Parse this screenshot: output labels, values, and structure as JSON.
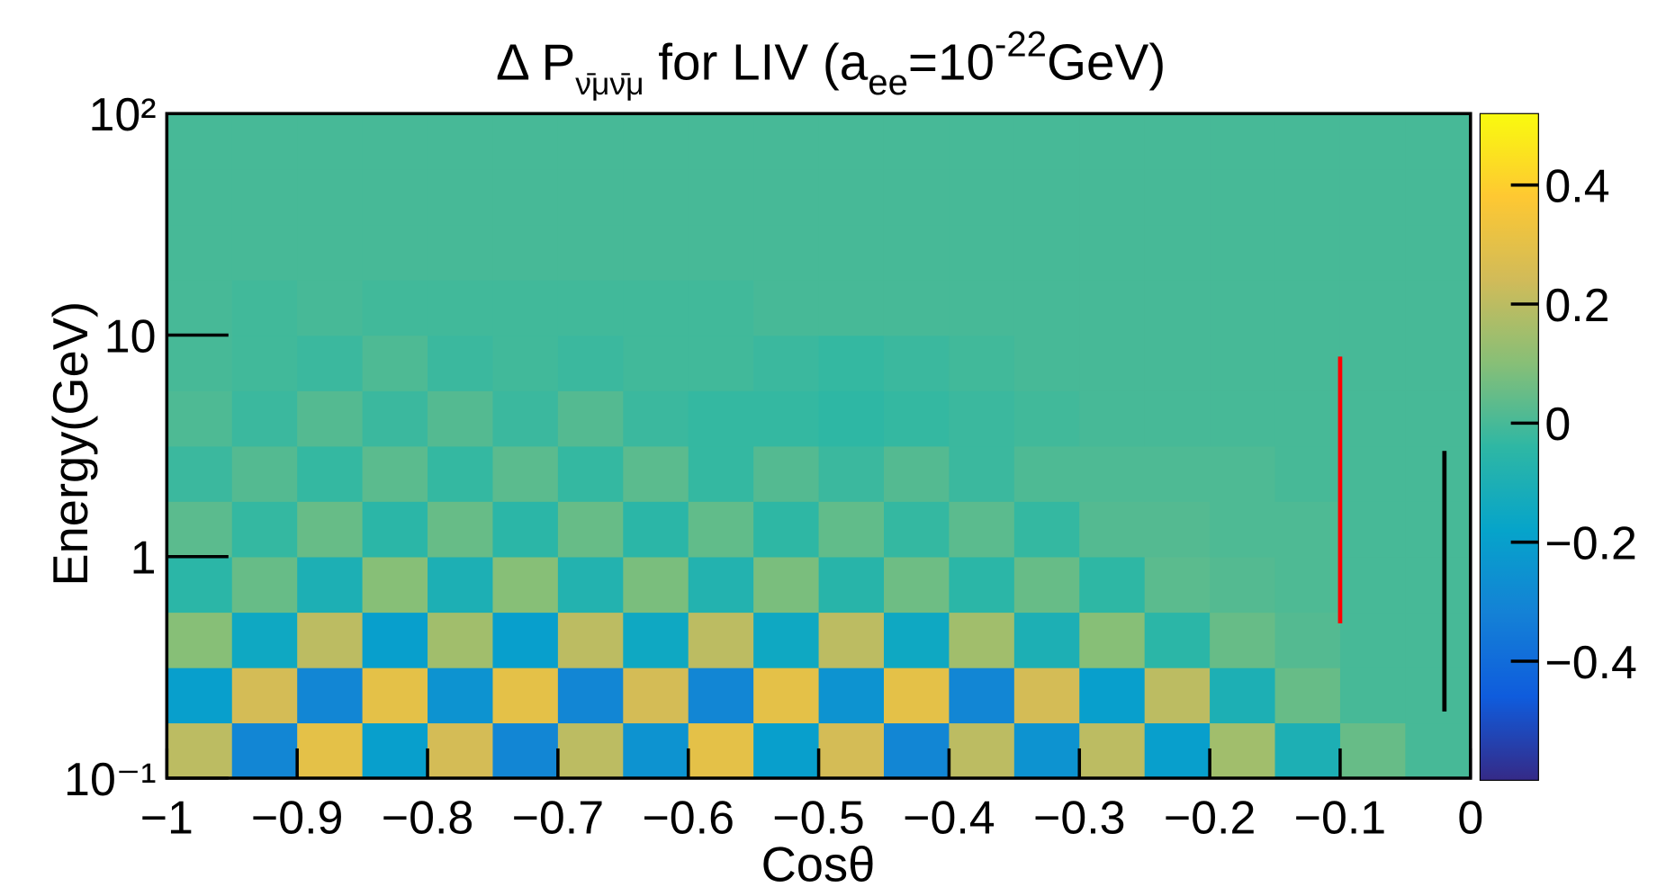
{
  "chart_data": {
    "type": "heatmap",
    "title": [
      "Δ P",
      "ν̄μν̄μ",
      " for LIV (a",
      "ee",
      "=10",
      "-22",
      "GeV)"
    ],
    "x_label": "Cosθ",
    "y_label": "Energy(GeV)",
    "xlim": [
      -1,
      0
    ],
    "xticks": [
      {
        "value": -1,
        "label": "−1"
      },
      {
        "value": -0.9,
        "label": "−0.9"
      },
      {
        "value": -0.8,
        "label": "−0.8"
      },
      {
        "value": -0.7,
        "label": "−0.7"
      },
      {
        "value": -0.6,
        "label": "−0.6"
      },
      {
        "value": -0.5,
        "label": "−0.5"
      },
      {
        "value": -0.4,
        "label": "−0.4"
      },
      {
        "value": -0.3,
        "label": "−0.3"
      },
      {
        "value": -0.2,
        "label": "−0.2"
      },
      {
        "value": -0.1,
        "label": "−0.1"
      },
      0
    ],
    "ylim": [
      0.1,
      100
    ],
    "y_log": true,
    "yticks": [
      {
        "value": 0.1,
        "label": "10⁻¹"
      },
      1,
      10,
      {
        "value": 100,
        "label": "10²"
      }
    ],
    "zlim": [
      -0.6,
      0.52
    ],
    "zticks": [
      {
        "value": -0.4,
        "label": "−0.4"
      },
      {
        "value": -0.2,
        "label": "−0.2"
      },
      0,
      0.2,
      0.4
    ],
    "colorscale": [
      "#352a87",
      "#0f5cdd",
      "#1481d6",
      "#06a4ca",
      "#2eb7a4",
      "#87bf77",
      "#d1bb59",
      "#fec832",
      "#f9fb0e"
    ],
    "x_edges": [
      -1,
      -0.95,
      -0.9,
      -0.85,
      -0.8,
      -0.75,
      -0.7,
      -0.65,
      -0.6,
      -0.55,
      -0.5,
      -0.45,
      -0.4,
      -0.35,
      -0.3,
      -0.25,
      -0.2,
      -0.15,
      -0.1,
      -0.05,
      0
    ],
    "y_edges": [
      0.1,
      0.178,
      0.316,
      0.562,
      1,
      1.78,
      3.16,
      5.62,
      10,
      17.8,
      31.6,
      56.2,
      100
    ],
    "z": [
      [
        0.2,
        -0.3,
        0.3,
        -0.2,
        0.25,
        -0.3,
        0.2,
        -0.25,
        0.3,
        -0.2,
        0.25,
        -0.3,
        0.2,
        -0.25,
        0.2,
        -0.2,
        0.15,
        -0.1,
        0.05,
        0
      ],
      [
        -0.2,
        0.25,
        -0.3,
        0.3,
        -0.25,
        0.3,
        -0.3,
        0.25,
        -0.3,
        0.3,
        -0.25,
        0.3,
        -0.3,
        0.25,
        -0.2,
        0.2,
        -0.1,
        0.05,
        0,
        0
      ],
      [
        0.1,
        -0.15,
        0.2,
        -0.2,
        0.15,
        -0.2,
        0.2,
        -0.15,
        0.2,
        -0.15,
        0.2,
        -0.15,
        0.15,
        -0.1,
        0.1,
        -0.05,
        0.05,
        0.02,
        0,
        0
      ],
      [
        -0.05,
        0.05,
        -0.1,
        0.1,
        -0.1,
        0.1,
        -0.08,
        0.08,
        -0.08,
        0.08,
        -0.06,
        0.06,
        -0.05,
        0.05,
        -0.04,
        0.03,
        0.02,
        0.01,
        0,
        0
      ],
      [
        0.03,
        -0.03,
        0.05,
        -0.05,
        0.05,
        -0.05,
        0.05,
        -0.05,
        0.04,
        -0.04,
        0.04,
        -0.03,
        0.03,
        -0.03,
        0.02,
        0.02,
        0.01,
        0.01,
        0,
        0
      ],
      [
        -0.02,
        0.02,
        -0.03,
        0.03,
        -0.03,
        0.03,
        -0.03,
        0.03,
        -0.03,
        0.02,
        -0.02,
        0.02,
        -0.02,
        0.01,
        0.01,
        0.01,
        0.01,
        0,
        0,
        0
      ],
      [
        0.01,
        -0.02,
        0.02,
        -0.02,
        0.02,
        -0.02,
        0.02,
        -0.02,
        -0.03,
        -0.03,
        -0.04,
        -0.03,
        -0.02,
        -0.01,
        0,
        0,
        0,
        0,
        0,
        0
      ],
      [
        0,
        -0.01,
        -0.02,
        0.01,
        -0.02,
        -0.01,
        -0.02,
        -0.01,
        -0.01,
        -0.02,
        -0.03,
        -0.02,
        -0.01,
        0,
        0,
        0,
        0,
        0,
        0,
        0
      ],
      [
        0,
        -0.01,
        0,
        -0.01,
        -0.01,
        -0.01,
        -0.01,
        -0.01,
        -0.01,
        0,
        0,
        0,
        0,
        0,
        0,
        0,
        0,
        0,
        0,
        0
      ],
      [
        0,
        0,
        0,
        0,
        0,
        0,
        0,
        0,
        0,
        0,
        0,
        0,
        0,
        0,
        0,
        0,
        0,
        0,
        0,
        0
      ],
      [
        0,
        0,
        0,
        0,
        0,
        0,
        0,
        0,
        0,
        0,
        0,
        0,
        0,
        0,
        0,
        0,
        0,
        0,
        0,
        0
      ],
      [
        0,
        0,
        0,
        0,
        0,
        0,
        0,
        0,
        0,
        0,
        0,
        0,
        0,
        0,
        0,
        0,
        0,
        0,
        0,
        0
      ]
    ],
    "lines": [
      {
        "x": -0.1,
        "y": [
          0.5,
          8
        ],
        "color": "#ff0000"
      },
      {
        "x": -0.02,
        "y": [
          0.2,
          3
        ],
        "color": "#000000"
      }
    ]
  }
}
